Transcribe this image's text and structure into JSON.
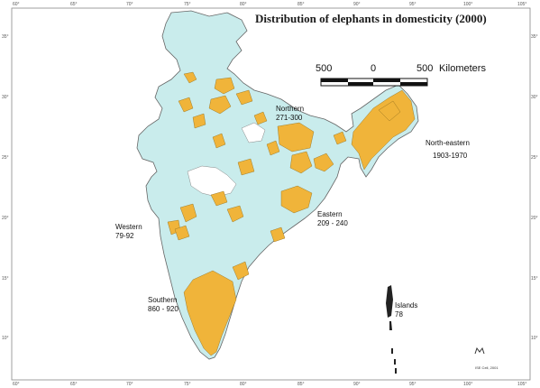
{
  "title": "Distribution of elephants in domesticity (2000)",
  "scale": {
    "left": "500",
    "center": "0",
    "right": "500",
    "unit": "Kilometers"
  },
  "top_ticks": [
    "60°",
    "65°",
    "70°",
    "75°",
    "80°",
    "85°",
    "90°",
    "95°",
    "100°",
    "105°"
  ],
  "bottom_ticks": [
    "60°",
    "65°",
    "70°",
    "75°",
    "80°",
    "85°",
    "90°",
    "95°",
    "100°",
    "105°"
  ],
  "left_ticks": [
    "35°",
    "30°",
    "25°",
    "20°",
    "15°",
    "10°"
  ],
  "right_ticks": [
    "35°",
    "30°",
    "25°",
    "20°",
    "15°",
    "10°"
  ],
  "regions": {
    "northern": {
      "name": "Northern",
      "value": "271-300"
    },
    "north_eastern": {
      "name": "North-eastern",
      "value": "1903-1970"
    },
    "western": {
      "name": "Western",
      "value": "79-92"
    },
    "eastern": {
      "name": "Eastern",
      "value": "209 - 240"
    },
    "southern": {
      "name": "Southern",
      "value": "860 - 920"
    },
    "islands": {
      "name": "Islands",
      "value": "78"
    }
  },
  "colors": {
    "land": "#c9ecec",
    "elephant_districts": "#f0b43a",
    "border": "#666666"
  },
  "footer": "ISE Cell, 2001"
}
